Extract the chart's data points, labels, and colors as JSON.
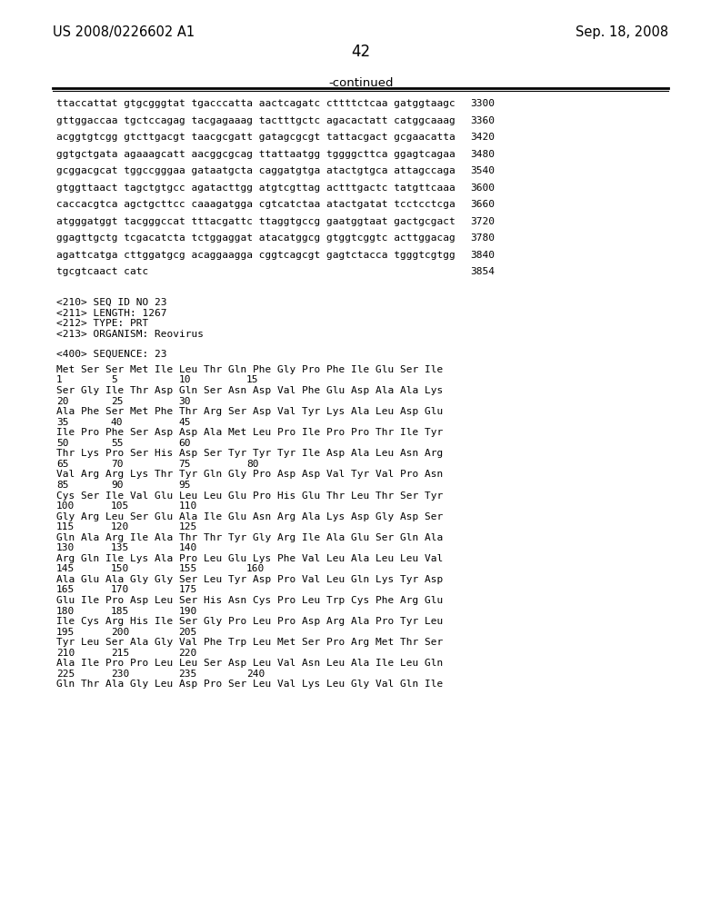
{
  "header_left": "US 2008/0226602 A1",
  "header_right": "Sep. 18, 2008",
  "page_number": "42",
  "continued_label": "-continued",
  "bg_color": "#ffffff",
  "text_color": "#000000",
  "dna_lines": [
    [
      "ttaccattat gtgcgggtat tgacccatta aactcagatc cttttctcaa gatggtaagc",
      "3300"
    ],
    [
      "gttggaccaa tgctccagag tacgagaaag tactttgctc agacactatt catggcaaag",
      "3360"
    ],
    [
      "acggtgtcgg gtcttgacgt taacgcgatt gatagcgcgt tattacgact gcgaacatta",
      "3420"
    ],
    [
      "ggtgctgata agaaagcatt aacggcgcag ttattaatgg tggggcttca ggagtcagaa",
      "3480"
    ],
    [
      "gcggacgcat tggccgggaa gataatgcta caggatgtga atactgtgca attagccaga",
      "3540"
    ],
    [
      "gtggttaact tagctgtgcc agatacttgg atgtcgttag actttgactc tatgttcaaa",
      "3600"
    ],
    [
      "caccacgtca agctgcttcc caaagatgga cgtcatctaa atactgatat tcctcctcga",
      "3660"
    ],
    [
      "atgggatggt tacgggccat tttacgattc ttaggtgccg gaatggtaat gactgcgact",
      "3720"
    ],
    [
      "ggagttgctg tcgacatcta tctggaggat atacatggcg gtggtcggtc acttggacag",
      "3780"
    ],
    [
      "agattcatga cttggatgcg acaggaagga cggtcagcgt gagtctacca tgggtcgtgg",
      "3840"
    ],
    [
      "tgcgtcaact catc",
      "3854"
    ]
  ],
  "metadata_lines": [
    "<210> SEQ ID NO 23",
    "<211> LENGTH: 1267",
    "<212> TYPE: PRT",
    "<213> ORGANISM: Reovirus"
  ],
  "sequence_label": "<400> SEQUENCE: 23",
  "aa_lines": [
    [
      "Met Ser Ser Met Ile Leu Thr Gln Phe Gly Pro Phe Ile Glu Ser Ile",
      [
        "1",
        "5",
        "10",
        "15"
      ]
    ],
    [
      "Ser Gly Ile Thr Asp Gln Ser Asn Asp Val Phe Glu Asp Ala Ala Lys",
      [
        "20",
        "25",
        "30"
      ]
    ],
    [
      "Ala Phe Ser Met Phe Thr Arg Ser Asp Val Tyr Lys Ala Leu Asp Glu",
      [
        "35",
        "40",
        "45"
      ]
    ],
    [
      "Ile Pro Phe Ser Asp Asp Ala Met Leu Pro Ile Pro Pro Thr Ile Tyr",
      [
        "50",
        "55",
        "60"
      ]
    ],
    [
      "Thr Lys Pro Ser His Asp Ser Tyr Tyr Tyr Ile Asp Ala Leu Asn Arg",
      [
        "65",
        "70",
        "75",
        "80"
      ]
    ],
    [
      "Val Arg Arg Lys Thr Tyr Gln Gly Pro Asp Asp Val Tyr Val Pro Asn",
      [
        "85",
        "90",
        "95"
      ]
    ],
    [
      "Cys Ser Ile Val Glu Leu Leu Glu Pro His Glu Thr Leu Thr Ser Tyr",
      [
        "100",
        "105",
        "110"
      ]
    ],
    [
      "Gly Arg Leu Ser Glu Ala Ile Glu Asn Arg Ala Lys Asp Gly Asp Ser",
      [
        "115",
        "120",
        "125"
      ]
    ],
    [
      "Gln Ala Arg Ile Ala Thr Thr Tyr Gly Arg Ile Ala Glu Ser Gln Ala",
      [
        "130",
        "135",
        "140"
      ]
    ],
    [
      "Arg Gln Ile Lys Ala Pro Leu Glu Lys Phe Val Leu Ala Leu Leu Val",
      [
        "145",
        "150",
        "155",
        "160"
      ]
    ],
    [
      "Ala Glu Ala Gly Gly Ser Leu Tyr Asp Pro Val Leu Gln Lys Tyr Asp",
      [
        "165",
        "170",
        "175"
      ]
    ],
    [
      "Glu Ile Pro Asp Leu Ser His Asn Cys Pro Leu Trp Cys Phe Arg Glu",
      [
        "180",
        "185",
        "190"
      ]
    ],
    [
      "Ile Cys Arg His Ile Ser Gly Pro Leu Pro Asp Arg Ala Pro Tyr Leu",
      [
        "195",
        "200",
        "205"
      ]
    ],
    [
      "Tyr Leu Ser Ala Gly Val Phe Trp Leu Met Ser Pro Arg Met Thr Ser",
      [
        "210",
        "215",
        "220"
      ]
    ],
    [
      "Ala Ile Pro Pro Leu Leu Ser Asp Leu Val Asn Leu Ala Ile Leu Gln",
      [
        "225",
        "230",
        "235",
        "240"
      ]
    ],
    [
      "Gln Thr Ala Gly Leu Asp Pro Ser Leu Val Lys Leu Gly Val Gln Ile",
      []
    ]
  ],
  "aa_num_residue_positions": {
    "1": [
      0,
      4,
      9,
      14
    ],
    "3": [
      0,
      4,
      9
    ],
    "4": [
      0,
      4,
      9,
      14
    ]
  }
}
